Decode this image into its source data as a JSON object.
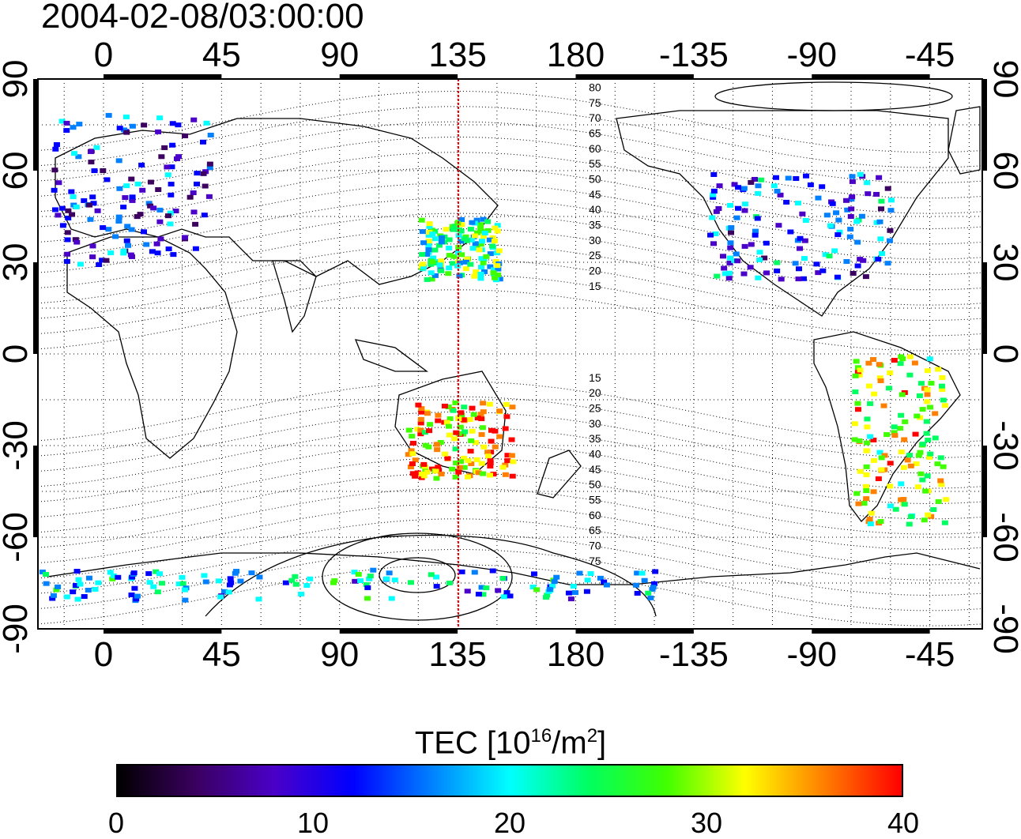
{
  "title": "2004-02-08/03:00:00",
  "colorbar": {
    "title_prefix": "TEC  [10",
    "title_exp1": "16",
    "title_mid": "/m",
    "title_exp2": "2",
    "title_suffix": "]",
    "ticks": [
      "0",
      "10",
      "20",
      "30",
      "40"
    ],
    "range": [
      0,
      40
    ],
    "colormap": [
      "#000000",
      "#3b0060",
      "#4a00c8",
      "#0000ff",
      "#0080ff",
      "#00ffff",
      "#00ff60",
      "#40ff00",
      "#ffff00",
      "#ff8000",
      "#ff0000"
    ]
  },
  "axes": {
    "x_ticks_deg": [
      "0",
      "45",
      "90",
      "135",
      "180",
      "-135",
      "-90",
      "-45"
    ],
    "y_ticks_deg": [
      "90",
      "60",
      "30",
      "0",
      "-30",
      "-60",
      "-90"
    ],
    "lon_range": [
      -25,
      335
    ],
    "lat_range": [
      -90,
      90
    ]
  },
  "magnetic_latitude_labels": [
    "80",
    "75",
    "70",
    "65",
    "60",
    "55",
    "50",
    "45",
    "40",
    "35",
    "30",
    "25",
    "20",
    "15",
    "15",
    "20",
    "25",
    "30",
    "35",
    "40",
    "45",
    "50",
    "55",
    "60",
    "65",
    "70",
    "75"
  ],
  "local_noon_meridian_lon": 135,
  "colors": {
    "meridian": "#ff0000",
    "frame": "#000000"
  },
  "tec_regions": [
    {
      "name": "europe",
      "lon": [
        -20,
        40
      ],
      "lat": [
        30,
        80
      ],
      "value": 12
    },
    {
      "name": "japan",
      "lon": [
        120,
        150
      ],
      "lat": [
        25,
        45
      ],
      "value": 24
    },
    {
      "name": "north-america",
      "lon": [
        -130,
        -60
      ],
      "lat": [
        25,
        60
      ],
      "value": 14
    },
    {
      "name": "australia",
      "lon": [
        115,
        155
      ],
      "lat": [
        -40,
        -15
      ],
      "value": 34
    },
    {
      "name": "south-america",
      "lon": [
        -75,
        -40
      ],
      "lat": [
        -55,
        0
      ],
      "value": 30
    },
    {
      "name": "antarctica",
      "lon": [
        -25,
        215
      ],
      "lat": [
        -80,
        -70
      ],
      "value": 18
    }
  ]
}
